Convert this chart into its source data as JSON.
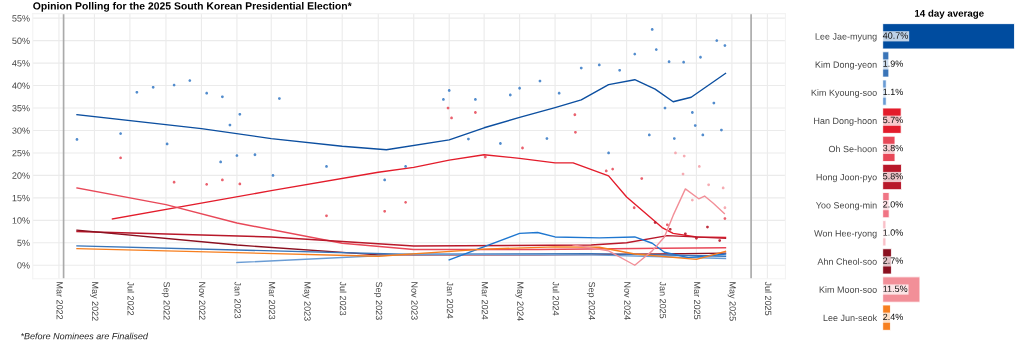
{
  "chart_data": [
    {
      "type": "line",
      "title": "Opinion Polling for the 2025 South Korean Presidential Election*",
      "annotations": [
        "*Before Nominees are Finalised"
      ],
      "xlim": [
        "2022-01-15",
        "2025-08-01"
      ],
      "ylim": [
        -3,
        56
      ],
      "xticks": [
        {
          "value": "2022-03-01",
          "label": "Mar 2022"
        },
        {
          "value": "2022-05-01",
          "label": "May 2022"
        },
        {
          "value": "2022-07-01",
          "label": "Jul 2022"
        },
        {
          "value": "2022-09-01",
          "label": "Sep 2022"
        },
        {
          "value": "2022-11-01",
          "label": "Nov 2022"
        },
        {
          "value": "2023-01-01",
          "label": "Jan 2023"
        },
        {
          "value": "2023-03-01",
          "label": "Mar 2023"
        },
        {
          "value": "2023-05-01",
          "label": "May 2023"
        },
        {
          "value": "2023-07-01",
          "label": "Jul 2023"
        },
        {
          "value": "2023-09-01",
          "label": "Sep 2023"
        },
        {
          "value": "2023-11-01",
          "label": "Nov 2023"
        },
        {
          "value": "2024-01-01",
          "label": "Jan 2024"
        },
        {
          "value": "2024-03-01",
          "label": "Mar 2024"
        },
        {
          "value": "2024-05-01",
          "label": "May 2024"
        },
        {
          "value": "2024-07-01",
          "label": "Jul 2024"
        },
        {
          "value": "2024-09-01",
          "label": "Sep 2024"
        },
        {
          "value": "2024-11-01",
          "label": "Nov 2024"
        },
        {
          "value": "2025-01-01",
          "label": "Jan 2025"
        },
        {
          "value": "2025-03-01",
          "label": "Mar 2025"
        },
        {
          "value": "2025-05-01",
          "label": "May 2025"
        },
        {
          "value": "2025-07-01",
          "label": "Jul 2025"
        }
      ],
      "yticks": [
        {
          "value": 0,
          "label": "0%"
        },
        {
          "value": 5,
          "label": "5%"
        },
        {
          "value": 10,
          "label": "10%"
        },
        {
          "value": 15,
          "label": "15%"
        },
        {
          "value": 20,
          "label": "20%"
        },
        {
          "value": 25,
          "label": "25%"
        },
        {
          "value": 30,
          "label": "30%"
        },
        {
          "value": 35,
          "label": "35%"
        },
        {
          "value": 40,
          "label": "40%"
        },
        {
          "value": 45,
          "label": "45%"
        },
        {
          "value": 50,
          "label": "50%"
        },
        {
          "value": 55,
          "label": "55%"
        }
      ],
      "grid": true,
      "ref_lines": [
        {
          "axis": "x",
          "value": "2022-03-09",
          "color": "#aaaaaa"
        },
        {
          "axis": "x",
          "value": "2025-06-03",
          "color": "#aaaaaa"
        }
      ],
      "series": [
        {
          "type": "scatter",
          "color": "#3f7fc8",
          "x": [
            "2022-04-01",
            "2022-06-15",
            "2022-07-13",
            "2022-08-10",
            "2022-09-03",
            "2022-09-15",
            "2022-10-12",
            "2022-11-10",
            "2022-12-04",
            "2022-12-07",
            "2022-12-20",
            "2023-01-01",
            "2023-01-06",
            "2023-02-01",
            "2023-03-04",
            "2023-03-15",
            "2023-06-04",
            "2023-09-12",
            "2023-10-18",
            "2023-12-22",
            "2024-01-01",
            "2024-02-03",
            "2024-02-15",
            "2024-03-29",
            "2024-04-15",
            "2024-05-01",
            "2024-06-05",
            "2024-06-17",
            "2024-07-08",
            "2024-08-15",
            "2024-09-15",
            "2024-10-01",
            "2024-10-20",
            "2024-11-15",
            "2024-12-10",
            "2024-12-15",
            "2024-12-22",
            "2025-01-06",
            "2025-01-13",
            "2025-01-22",
            "2025-02-07",
            "2025-02-22",
            "2025-02-27",
            "2025-03-08",
            "2025-03-12",
            "2025-03-31",
            "2025-04-05",
            "2025-04-13",
            "2025-04-19"
          ],
          "values": [
            28.0,
            29.3,
            38.5,
            39.6,
            27.0,
            40.1,
            41.1,
            38.3,
            23.0,
            37.5,
            31.2,
            24.4,
            33.6,
            24.6,
            20.0,
            37.1,
            22.0,
            19.0,
            22.0,
            36.9,
            38.9,
            28.1,
            36.9,
            27.1,
            37.9,
            39.4,
            41.0,
            28.2,
            38.3,
            43.9,
            44.6,
            25.0,
            43.4,
            47.0,
            29.0,
            52.5,
            48.0,
            35.0,
            45.3,
            28.2,
            45.2,
            34.0,
            31.1,
            46.3,
            29.0,
            36.1,
            50.0,
            30.1,
            48.9
          ]
        },
        {
          "type": "scatter",
          "color": "#e8505e",
          "x": [
            "2022-06-15",
            "2022-09-15",
            "2022-11-10",
            "2022-12-07",
            "2023-01-06",
            "2023-06-04",
            "2023-09-12",
            "2023-10-18",
            "2023-12-30",
            "2024-01-05",
            "2024-02-15",
            "2024-03-03",
            "2024-05-06",
            "2024-08-04",
            "2024-08-05",
            "2024-09-27",
            "2024-10-08",
            "2024-11-14",
            "2024-11-27",
            "2025-01-10",
            "2025-04-19"
          ],
          "values": [
            23.9,
            18.5,
            18.0,
            19.0,
            18.1,
            11.0,
            12.0,
            14.0,
            35.0,
            32.8,
            34.0,
            24.1,
            26.1,
            33.5,
            29.6,
            21.0,
            21.4,
            12.8,
            19.3,
            9.0,
            10.4
          ]
        },
        {
          "type": "scatter",
          "color": "#f5a3ab",
          "x": [
            "2025-01-24",
            "2025-02-06",
            "2025-02-08",
            "2025-02-22",
            "2025-03-06",
            "2025-03-22",
            "2025-04-16",
            "2025-04-19"
          ],
          "values": [
            25.0,
            20.3,
            24.3,
            14.5,
            22.0,
            17.9,
            17.2,
            12.8
          ]
        },
        {
          "type": "scatter",
          "color": "#b8182a",
          "x": [
            "2024-12-20",
            "2025-01-15",
            "2025-02-10",
            "2025-03-01",
            "2025-03-20",
            "2025-04-10"
          ],
          "values": [
            9.5,
            8.0,
            7.0,
            6.0,
            8.5,
            5.5
          ]
        },
        {
          "type": "line",
          "color": "#0c4fa0",
          "x": [
            "2022-04-01",
            "2022-11-01",
            "2023-03-01",
            "2023-07-01",
            "2023-09-15",
            "2024-01-01",
            "2024-03-01",
            "2024-05-01",
            "2024-07-01",
            "2024-08-15",
            "2024-10-01",
            "2024-11-15",
            "2024-12-20",
            "2025-01-20",
            "2025-02-20",
            "2025-04-20"
          ],
          "values": [
            33.5,
            30.4,
            28.2,
            26.5,
            25.7,
            27.9,
            30.6,
            32.9,
            35.1,
            36.8,
            40.2,
            41.3,
            39.2,
            36.4,
            37.4,
            42.7
          ]
        },
        {
          "type": "line",
          "color": "#e31c2b",
          "x": [
            "2022-06-01",
            "2023-03-01",
            "2023-09-01",
            "2023-11-01",
            "2024-01-01",
            "2024-03-01",
            "2024-05-01",
            "2024-07-01",
            "2024-08-01",
            "2024-10-01",
            "2024-11-01",
            "2025-01-01",
            "2025-01-20",
            "2025-03-01",
            "2025-04-20"
          ],
          "values": [
            10.3,
            16.6,
            20.7,
            21.8,
            23.4,
            24.6,
            23.8,
            22.8,
            22.8,
            19.9,
            15.2,
            8.4,
            7.1,
            6.3,
            6.2
          ]
        },
        {
          "type": "line",
          "color": "#e84858",
          "x": [
            "2022-04-01",
            "2022-09-01",
            "2023-01-01",
            "2023-07-01",
            "2023-11-01",
            "2024-06-01",
            "2025-01-01",
            "2025-04-20"
          ],
          "values": [
            17.2,
            13.5,
            9.4,
            4.9,
            3.5,
            3.5,
            3.8,
            3.9
          ]
        },
        {
          "type": "line",
          "color": "#b8182a",
          "x": [
            "2022-04-01",
            "2023-03-01",
            "2023-11-01",
            "2024-09-01",
            "2024-11-01",
            "2025-01-10",
            "2025-04-20"
          ],
          "values": [
            7.5,
            6.3,
            4.3,
            4.5,
            5.0,
            6.6,
            6.0
          ]
        },
        {
          "type": "line",
          "color": "#8b1020",
          "x": [
            "2022-04-01",
            "2023-01-01",
            "2023-09-01",
            "2024-06-01",
            "2025-01-01",
            "2025-04-20"
          ],
          "values": [
            7.8,
            4.5,
            2.3,
            2.3,
            2.5,
            2.7
          ]
        },
        {
          "type": "line",
          "color": "#3a75b8",
          "x": [
            "2022-04-01",
            "2023-11-01",
            "2024-09-01",
            "2025-04-20"
          ],
          "values": [
            4.3,
            2.4,
            2.6,
            2.0
          ]
        },
        {
          "type": "line",
          "color": "#6a9cd4",
          "x": [
            "2023-01-01",
            "2023-11-01",
            "2024-09-01",
            "2025-04-20"
          ],
          "values": [
            0.6,
            2.5,
            2.3,
            1.5
          ]
        },
        {
          "type": "line",
          "color": "#1f77d0",
          "x": [
            "2024-01-01",
            "2024-05-01",
            "2024-06-01",
            "2024-07-01",
            "2024-09-15",
            "2024-11-15",
            "2024-12-15",
            "2025-01-05",
            "2025-02-15",
            "2025-04-20"
          ],
          "values": [
            1.2,
            7.1,
            7.3,
            6.3,
            6.1,
            6.3,
            4.9,
            2.9,
            1.7,
            2.5
          ]
        },
        {
          "type": "line",
          "color": "#f77f1f",
          "x": [
            "2022-04-01",
            "2023-09-01",
            "2024-03-01",
            "2024-07-01",
            "2024-09-15",
            "2024-11-15",
            "2025-03-01",
            "2025-04-20"
          ],
          "values": [
            3.7,
            2.0,
            3.6,
            4.1,
            4.0,
            2.5,
            1.3,
            3.1
          ]
        },
        {
          "type": "line",
          "color": "#f28f98",
          "x": [
            "2024-08-01",
            "2024-10-01",
            "2024-11-15",
            "2024-12-15",
            "2025-01-05",
            "2025-01-20",
            "2025-02-10",
            "2025-03-05",
            "2025-03-15",
            "2025-03-30",
            "2025-04-18"
          ],
          "values": [
            4.5,
            3.2,
            0.0,
            3.2,
            6.3,
            11.1,
            17.0,
            14.8,
            15.4,
            13.8,
            11.5
          ]
        }
      ]
    },
    {
      "type": "bar",
      "orientation": "horizontal",
      "title": "14 day average",
      "categories": [
        "Lee Jae-myung",
        "Kim Dong-yeon",
        "Kim Kyoung-soo",
        "Han Dong-hoon",
        "Oh Se-hoon",
        "Hong Joon-pyo",
        "Yoo Seong-min",
        "Won Hee-ryong",
        "Ahn Cheol-soo",
        "Kim Moon-soo",
        "Lee Jun-seok"
      ],
      "values": [
        40.7,
        1.9,
        1.1,
        5.7,
        3.8,
        5.8,
        2.0,
        1.0,
        2.7,
        11.5,
        2.4
      ],
      "colors": [
        "#004c9f",
        "#3a75b8",
        "#6a9cd4",
        "#e31c2b",
        "#e84858",
        "#b8182a",
        "#f07585",
        "#f9c0c8",
        "#8b1020",
        "#f28f98",
        "#f77f1f"
      ],
      "value_labels": [
        "40.7%",
        "1.9%",
        "1.1%",
        "5.7%",
        "3.8%",
        "5.8%",
        "2.0%",
        "1.0%",
        "2.7%",
        "11.5%",
        "2.4%"
      ]
    }
  ]
}
